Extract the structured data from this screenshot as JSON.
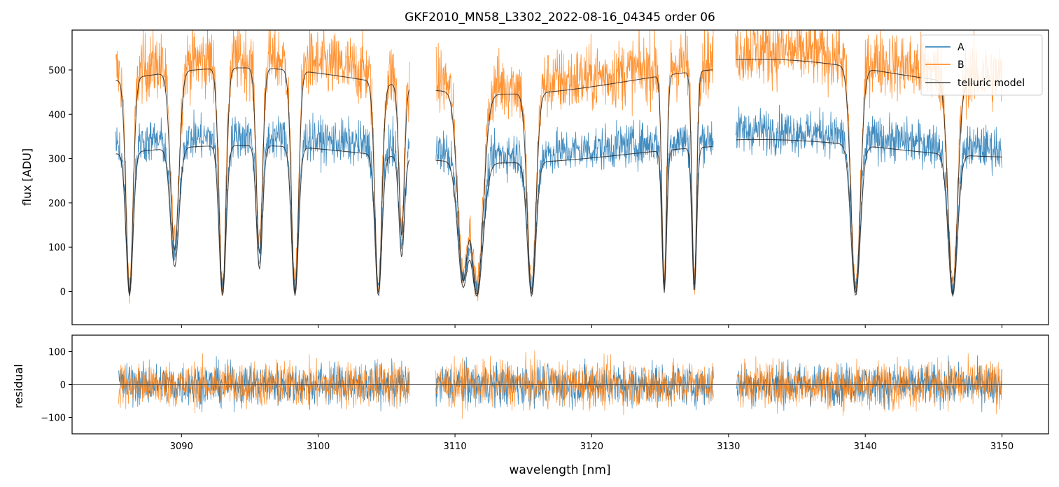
{
  "chart_data": [
    {
      "panel": "spectrum",
      "type": "line",
      "title": "GKF2010_MN58_L3302_2022-08-16_04345  order 06",
      "xlabel": "",
      "ylabel": "flux [ADU]",
      "xlim": [
        3082,
        3153.4
      ],
      "ylim": [
        -75,
        590
      ],
      "xticks": [
        3090,
        3100,
        3110,
        3120,
        3130,
        3140,
        3150
      ],
      "yticks": [
        0,
        100,
        200,
        300,
        400,
        500
      ],
      "ytick_labels": [
        "0",
        "100",
        "200",
        "300",
        "400",
        "500"
      ],
      "gaps": [
        [
          3106.7,
          3108.6
        ],
        [
          3128.9,
          3130.5
        ]
      ],
      "x_range": [
        3085.2,
        3150.0
      ],
      "absorption_lines": [
        {
          "center": 3086.2,
          "depth": 0.97,
          "width": 0.45
        },
        {
          "center": 3089.5,
          "depth": 0.78,
          "width": 0.55
        },
        {
          "center": 3093.0,
          "depth": 0.97,
          "width": 0.45
        },
        {
          "center": 3095.7,
          "depth": 0.8,
          "width": 0.4
        },
        {
          "center": 3098.3,
          "depth": 0.97,
          "width": 0.45
        },
        {
          "center": 3104.4,
          "depth": 0.97,
          "width": 0.45
        },
        {
          "center": 3106.1,
          "depth": 0.7,
          "width": 0.35
        },
        {
          "center": 3110.6,
          "depth": 0.9,
          "width": 0.7
        },
        {
          "center": 3111.6,
          "depth": 0.97,
          "width": 0.8
        },
        {
          "center": 3115.6,
          "depth": 0.97,
          "width": 0.55
        },
        {
          "center": 3125.3,
          "depth": 0.95,
          "width": 0.3
        },
        {
          "center": 3127.5,
          "depth": 0.95,
          "width": 0.3
        },
        {
          "center": 3139.3,
          "depth": 0.97,
          "width": 0.6
        },
        {
          "center": 3146.4,
          "depth": 0.97,
          "width": 0.6
        }
      ],
      "series": [
        {
          "name": "A",
          "color": "#1f77b4",
          "continuum": 330,
          "noise": 35
        },
        {
          "name": "B",
          "color": "#ff7f0e",
          "continuum": 495,
          "noise": 55
        },
        {
          "name": "telluric model",
          "color": "#000000",
          "continuum": [
            330,
            495
          ]
        }
      ],
      "legend": {
        "position": "top-right",
        "entries": [
          "A",
          "B",
          "telluric model"
        ]
      }
    },
    {
      "panel": "residual",
      "type": "line",
      "xlabel": "wavelength [nm]",
      "ylabel": "residual",
      "xlim": [
        3082,
        3153.4
      ],
      "ylim": [
        -150,
        150
      ],
      "xticks": [
        3090,
        3100,
        3110,
        3120,
        3130,
        3140,
        3150
      ],
      "xtick_labels": [
        "3090",
        "3100",
        "3110",
        "3120",
        "3130",
        "3140",
        "3150"
      ],
      "yticks": [
        -100,
        0,
        100
      ],
      "ytick_labels": [
        "−100",
        "0",
        "100"
      ],
      "segments": [
        [
          3085.4,
          3106.7
        ],
        [
          3108.6,
          3128.9
        ],
        [
          3130.6,
          3150.0
        ]
      ],
      "series": [
        {
          "name": "A",
          "color": "#1f77b4",
          "noise_sd": 45
        },
        {
          "name": "B",
          "color": "#ff7f0e",
          "noise_sd": 50
        }
      ],
      "zero_line": 0
    }
  ]
}
